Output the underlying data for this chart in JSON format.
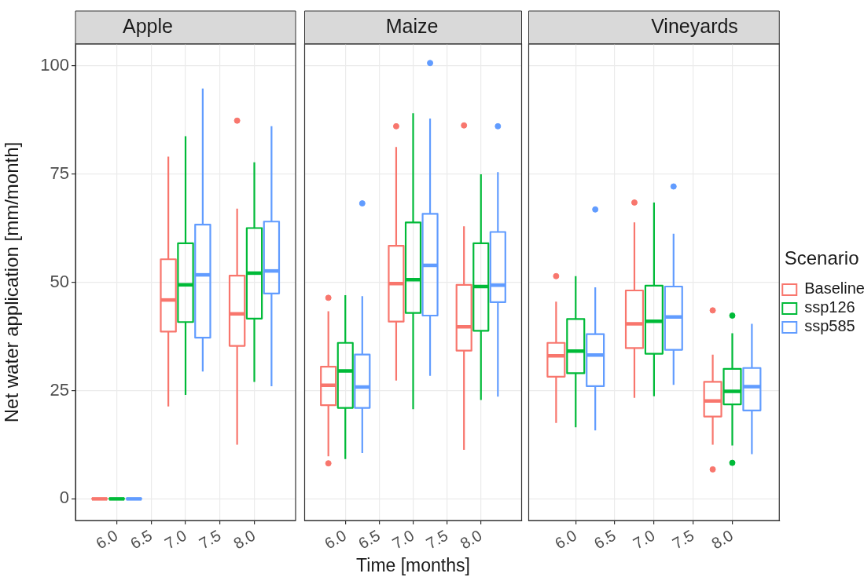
{
  "chart_data": [
    {
      "type": "box",
      "title": "Apple",
      "ylabel": "Net water application [mm/month]",
      "x": [
        6,
        7,
        8
      ],
      "xlim": [
        5.4,
        8.6
      ],
      "xticks": [
        {
          "value": 6,
          "label": "6.0"
        },
        {
          "value": 6.5,
          "label": "6.5"
        },
        {
          "value": 7,
          "label": "7.0"
        },
        {
          "value": 7.5,
          "label": "7.5"
        },
        {
          "value": 8,
          "label": "8.0"
        }
      ],
      "ylim": [
        -5,
        105
      ],
      "yticks": [
        0,
        25,
        50,
        75,
        100
      ],
      "grid": true,
      "series": [
        {
          "color": "#f8766d",
          "boxes": [
            {
              "low": 0,
              "q1": 0,
              "median": 0,
              "q3": 0,
              "high": 0
            },
            {
              "low": 21.3,
              "q1": 38.6,
              "median": 45.9,
              "q3": 55.3,
              "high": 79
            },
            {
              "low": 12.5,
              "q1": 35.3,
              "median": 42.7,
              "q3": 51.5,
              "high": 67,
              "outliers": [
                87.3
              ]
            }
          ]
        },
        {
          "color": "#00ba38",
          "boxes": [
            {
              "low": 0,
              "q1": 0,
              "median": 0,
              "q3": 0,
              "high": 0
            },
            {
              "low": 24,
              "q1": 40.8,
              "median": 49.4,
              "q3": 59,
              "high": 83.7
            },
            {
              "low": 27,
              "q1": 41.6,
              "median": 52.1,
              "q3": 62.5,
              "high": 77.7
            }
          ]
        },
        {
          "color": "#619cff",
          "boxes": [
            {
              "low": 0,
              "q1": 0,
              "median": 0,
              "q3": 0,
              "high": 0
            },
            {
              "low": 29.4,
              "q1": 37.2,
              "median": 51.7,
              "q3": 63.3,
              "high": 94.7
            },
            {
              "low": 26,
              "q1": 47.4,
              "median": 52.6,
              "q3": 64,
              "high": 86
            }
          ]
        }
      ]
    },
    {
      "type": "box",
      "title": "Maize",
      "xlabel": "Time [months]",
      "x": [
        6,
        7,
        8
      ],
      "xlim": [
        5.4,
        8.6
      ],
      "xticks": [
        {
          "value": 6,
          "label": "6.0"
        },
        {
          "value": 6.5,
          "label": "6.5"
        },
        {
          "value": 7,
          "label": "7.0"
        },
        {
          "value": 7.5,
          "label": "7.5"
        },
        {
          "value": 8,
          "label": "8.0"
        }
      ],
      "ylim": [
        -5,
        105
      ],
      "yticks": [
        0,
        25,
        50,
        75,
        100
      ],
      "grid": true,
      "tick_labels": "x",
      "series": [
        {
          "color": "#f8766d",
          "boxes": [
            {
              "low": 9.8,
              "q1": 21.6,
              "median": 26.2,
              "q3": 30.5,
              "high": 43.3,
              "outliers": [
                46.4,
                8.2
              ]
            },
            {
              "low": 27.3,
              "q1": 40.9,
              "median": 49.7,
              "q3": 58.4,
              "high": 81.2,
              "outliers": [
                86
              ]
            },
            {
              "low": 11.3,
              "q1": 34.2,
              "median": 39.7,
              "q3": 49.4,
              "high": 62.9,
              "outliers": [
                86.2
              ]
            }
          ]
        },
        {
          "color": "#00ba38",
          "boxes": [
            {
              "low": 9.2,
              "q1": 21,
              "median": 29.5,
              "q3": 36,
              "high": 47
            },
            {
              "low": 20.7,
              "q1": 42.9,
              "median": 50.6,
              "q3": 63.8,
              "high": 89
            },
            {
              "low": 22.8,
              "q1": 38.8,
              "median": 49,
              "q3": 59,
              "high": 74.9
            }
          ]
        },
        {
          "color": "#619cff",
          "boxes": [
            {
              "low": 10.6,
              "q1": 21,
              "median": 25.8,
              "q3": 33.3,
              "high": 46.8,
              "outliers": [
                68.2
              ]
            },
            {
              "low": 28.4,
              "q1": 42.3,
              "median": 53.9,
              "q3": 65.8,
              "high": 87.8,
              "outliers": [
                100.6
              ]
            },
            {
              "low": 23.6,
              "q1": 45.4,
              "median": 49.3,
              "q3": 61.6,
              "high": 75.4,
              "outliers": [
                86
              ]
            }
          ]
        }
      ]
    },
    {
      "type": "box",
      "title": "Vineyards",
      "legend_title": "Scenario",
      "legend": "right",
      "x": [
        6,
        7,
        8
      ],
      "xlim": [
        5.4,
        8.6
      ],
      "xticks": [
        {
          "value": 6,
          "label": "6.0"
        },
        {
          "value": 6.5,
          "label": "6.5"
        },
        {
          "value": 7,
          "label": "7.0"
        },
        {
          "value": 7.5,
          "label": "7.5"
        },
        {
          "value": 8,
          "label": "8.0"
        }
      ],
      "ylim": [
        -5,
        105
      ],
      "yticks": [
        0,
        25,
        50,
        75,
        100
      ],
      "grid": true,
      "tick_labels": "x",
      "series": [
        {
          "name": "Baseline",
          "color": "#f8766d",
          "boxes": [
            {
              "low": 17.5,
              "q1": 28.2,
              "median": 33,
              "q3": 36,
              "high": 45.5,
              "outliers": [
                51.4
              ]
            },
            {
              "low": 23.3,
              "q1": 34.8,
              "median": 40.4,
              "q3": 48.1,
              "high": 63.8,
              "outliers": [
                68.4
              ]
            },
            {
              "low": 12.5,
              "q1": 19,
              "median": 22.6,
              "q3": 27,
              "high": 33.3,
              "outliers": [
                43.5,
                6.8
              ]
            }
          ]
        },
        {
          "name": "ssp126",
          "color": "#00ba38",
          "boxes": [
            {
              "low": 16.5,
              "q1": 29,
              "median": 34.1,
              "q3": 41.5,
              "high": 51.4
            },
            {
              "low": 23.7,
              "q1": 33.5,
              "median": 41,
              "q3": 49.2,
              "high": 68.4
            },
            {
              "low": 12.3,
              "q1": 21.8,
              "median": 24.8,
              "q3": 30,
              "high": 38.2,
              "outliers": [
                42.3,
                8.3
              ]
            }
          ]
        },
        {
          "name": "ssp585",
          "color": "#619cff",
          "boxes": [
            {
              "low": 15.8,
              "q1": 26,
              "median": 33.2,
              "q3": 38,
              "high": 48.8,
              "outliers": [
                66.8
              ]
            },
            {
              "low": 26.3,
              "q1": 34.4,
              "median": 42,
              "q3": 49,
              "high": 61.2,
              "outliers": [
                72.1
              ]
            },
            {
              "low": 10.3,
              "q1": 20.4,
              "median": 25.9,
              "q3": 30.2,
              "high": 40.4
            }
          ]
        }
      ]
    }
  ]
}
